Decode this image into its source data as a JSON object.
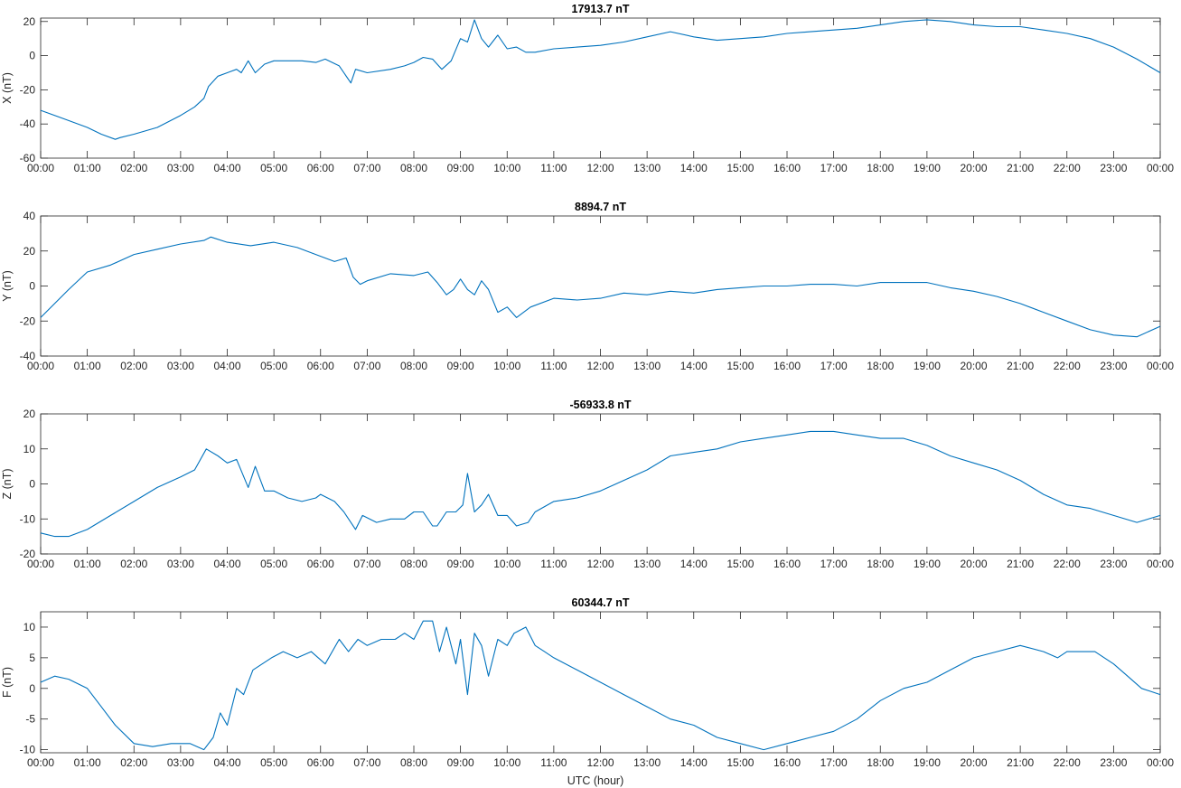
{
  "figure": {
    "xlabel": "UTC (hour)",
    "series_color": "#0072BD"
  },
  "chart_data": [
    {
      "type": "line",
      "title": "17913.7 nT",
      "ylabel": "X (nT)",
      "xlabel": "",
      "xlim": [
        0,
        24
      ],
      "ylim": [
        -60,
        22
      ],
      "yticks": [
        20,
        0,
        -20,
        -40,
        -60
      ],
      "xticklabels": [
        "00:00",
        "01:00",
        "02:00",
        "03:00",
        "04:00",
        "05:00",
        "06:00",
        "07:00",
        "08:00",
        "09:00",
        "10:00",
        "11:00",
        "12:00",
        "13:00",
        "14:00",
        "15:00",
        "16:00",
        "17:00",
        "18:00",
        "19:00",
        "20:00",
        "21:00",
        "22:00",
        "23:00",
        "00:00"
      ],
      "grid": false,
      "series": [
        {
          "x": [
            0,
            0.5,
            1,
            1.3,
            1.6,
            1.7,
            2,
            2.5,
            3,
            3.3,
            3.5,
            3.6,
            3.8,
            4,
            4.2,
            4.3,
            4.45,
            4.6,
            4.8,
            5,
            5.3,
            5.6,
            5.9,
            6.1,
            6.4,
            6.65,
            6.75,
            7,
            7.5,
            7.8,
            8,
            8.2,
            8.4,
            8.6,
            8.8,
            9,
            9.15,
            9.3,
            9.45,
            9.6,
            9.8,
            10,
            10.2,
            10.4,
            10.6,
            11,
            11.5,
            12,
            12.5,
            13,
            13.5,
            14,
            14.5,
            15,
            15.5,
            16,
            16.5,
            17,
            17.5,
            18,
            18.5,
            19,
            19.5,
            20,
            20.5,
            21,
            21.5,
            22,
            22.5,
            23,
            23.5,
            24
          ],
          "y": [
            -32,
            -37,
            -42,
            -46,
            -49,
            -48,
            -46,
            -42,
            -35,
            -30,
            -25,
            -18,
            -12,
            -10,
            -8,
            -10,
            -3,
            -10,
            -5,
            -3,
            -3,
            -3,
            -4,
            -2,
            -6,
            -16,
            -8,
            -10,
            -8,
            -6,
            -4,
            -1,
            -2,
            -8,
            -3,
            10,
            8,
            21,
            10,
            5,
            12,
            4,
            5,
            2,
            2,
            4,
            5,
            6,
            8,
            11,
            14,
            11,
            9,
            10,
            11,
            13,
            14,
            15,
            16,
            18,
            20,
            21,
            20,
            18,
            17,
            17,
            15,
            13,
            10,
            5,
            -2,
            -10
          ]
        }
      ]
    },
    {
      "type": "line",
      "title": "8894.7 nT",
      "ylabel": "Y (nT)",
      "xlabel": "",
      "xlim": [
        0,
        24
      ],
      "ylim": [
        -40,
        40
      ],
      "yticks": [
        40,
        20,
        0,
        -20,
        -40
      ],
      "xticklabels": [
        "00:00",
        "01:00",
        "02:00",
        "03:00",
        "04:00",
        "05:00",
        "06:00",
        "07:00",
        "08:00",
        "09:00",
        "10:00",
        "11:00",
        "12:00",
        "13:00",
        "14:00",
        "15:00",
        "16:00",
        "17:00",
        "18:00",
        "19:00",
        "20:00",
        "21:00",
        "22:00",
        "23:00",
        "00:00"
      ],
      "grid": false,
      "series": [
        {
          "x": [
            0,
            0.3,
            0.6,
            1,
            1.5,
            2,
            2.5,
            3,
            3.5,
            3.65,
            4,
            4.5,
            5,
            5.5,
            6,
            6.3,
            6.55,
            6.7,
            6.85,
            7,
            7.5,
            8,
            8.3,
            8.5,
            8.7,
            8.85,
            9,
            9.15,
            9.3,
            9.45,
            9.6,
            9.8,
            10,
            10.2,
            10.5,
            11,
            11.5,
            12,
            12.5,
            13,
            13.5,
            14,
            14.5,
            15,
            15.5,
            16,
            16.5,
            17,
            17.5,
            18,
            18.5,
            19,
            19.5,
            20,
            20.5,
            21,
            21.5,
            22,
            22.5,
            23,
            23.5,
            24
          ],
          "y": [
            -18,
            -10,
            -2,
            8,
            12,
            18,
            21,
            24,
            26,
            28,
            25,
            23,
            25,
            22,
            17,
            14,
            16,
            5,
            1,
            3,
            7,
            6,
            8,
            2,
            -5,
            -2,
            4,
            -2,
            -5,
            3,
            -2,
            -15,
            -12,
            -18,
            -12,
            -7,
            -8,
            -7,
            -4,
            -5,
            -3,
            -4,
            -2,
            -1,
            0,
            0,
            1,
            1,
            0,
            2,
            2,
            2,
            -1,
            -3,
            -6,
            -10,
            -15,
            -20,
            -25,
            -28,
            -29,
            -23
          ]
        }
      ]
    },
    {
      "type": "line",
      "title": "-56933.8 nT",
      "ylabel": "Z (nT)",
      "xlabel": "",
      "xlim": [
        0,
        24
      ],
      "ylim": [
        -20,
        20
      ],
      "yticks": [
        20,
        10,
        0,
        -10,
        -20
      ],
      "xticklabels": [
        "00:00",
        "01:00",
        "02:00",
        "03:00",
        "04:00",
        "05:00",
        "06:00",
        "07:00",
        "08:00",
        "09:00",
        "10:00",
        "11:00",
        "12:00",
        "13:00",
        "14:00",
        "15:00",
        "16:00",
        "17:00",
        "18:00",
        "19:00",
        "20:00",
        "21:00",
        "22:00",
        "23:00",
        "00:00"
      ],
      "grid": false,
      "series": [
        {
          "x": [
            0,
            0.3,
            0.6,
            1,
            1.5,
            2,
            2.5,
            3,
            3.3,
            3.55,
            3.8,
            4,
            4.2,
            4.45,
            4.6,
            4.8,
            5,
            5.3,
            5.6,
            5.9,
            6,
            6.3,
            6.5,
            6.75,
            6.9,
            7.2,
            7.5,
            7.8,
            8,
            8.2,
            8.4,
            8.5,
            8.7,
            8.9,
            9.05,
            9.15,
            9.3,
            9.45,
            9.6,
            9.8,
            10,
            10.2,
            10.45,
            10.6,
            11,
            11.5,
            12,
            12.5,
            13,
            13.5,
            14,
            14.5,
            15,
            15.5,
            16,
            16.5,
            17,
            17.5,
            18,
            18.5,
            19,
            19.5,
            20,
            20.5,
            21,
            21.5,
            22,
            22.5,
            23,
            23.5,
            24
          ],
          "y": [
            -14,
            -15,
            -15,
            -13,
            -9,
            -5,
            -1,
            2,
            4,
            10,
            8,
            6,
            7,
            -1,
            5,
            -2,
            -2,
            -4,
            -5,
            -4,
            -3,
            -5,
            -8,
            -13,
            -9,
            -11,
            -10,
            -10,
            -8,
            -8,
            -12,
            -12,
            -8,
            -8,
            -6,
            3,
            -8,
            -6,
            -3,
            -9,
            -9,
            -12,
            -11,
            -8,
            -5,
            -4,
            -2,
            1,
            4,
            8,
            9,
            10,
            12,
            13,
            14,
            15,
            15,
            14,
            13,
            13,
            11,
            8,
            6,
            4,
            1,
            -3,
            -6,
            -7,
            -9,
            -11,
            -9
          ]
        }
      ]
    },
    {
      "type": "line",
      "title": "60344.7 nT",
      "ylabel": "F (nT)",
      "xlabel": "UTC (hour)",
      "xlim": [
        0,
        24
      ],
      "ylim": [
        -10.5,
        12.5
      ],
      "yticks": [
        10,
        5,
        0,
        -5,
        -10
      ],
      "xticklabels": [
        "00:00",
        "01:00",
        "02:00",
        "03:00",
        "04:00",
        "05:00",
        "06:00",
        "07:00",
        "08:00",
        "09:00",
        "10:00",
        "11:00",
        "12:00",
        "13:00",
        "14:00",
        "15:00",
        "16:00",
        "17:00",
        "18:00",
        "19:00",
        "20:00",
        "21:00",
        "22:00",
        "23:00",
        "00:00"
      ],
      "grid": false,
      "series": [
        {
          "x": [
            0,
            0.3,
            0.6,
            1,
            1.3,
            1.6,
            2,
            2.4,
            2.8,
            3.2,
            3.5,
            3.7,
            3.85,
            4,
            4.2,
            4.35,
            4.55,
            4.75,
            4.95,
            5.2,
            5.5,
            5.8,
            6.1,
            6.4,
            6.6,
            6.8,
            7,
            7.3,
            7.6,
            7.8,
            8,
            8.2,
            8.4,
            8.55,
            8.7,
            8.9,
            9.0,
            9.15,
            9.3,
            9.45,
            9.6,
            9.8,
            10,
            10.15,
            10.4,
            10.6,
            10.8,
            11,
            11.5,
            12,
            12.5,
            13,
            13.5,
            14,
            14.5,
            15,
            15.5,
            16,
            16.5,
            17,
            17.5,
            18,
            18.5,
            19,
            19.5,
            20,
            20.5,
            21,
            21.5,
            21.8,
            22,
            22.3,
            22.6,
            23,
            23.3,
            23.6,
            24
          ],
          "y": [
            1,
            2,
            1.5,
            0,
            -3,
            -6,
            -9,
            -9.5,
            -9,
            -9,
            -10,
            -8,
            -4,
            -6,
            0,
            -1,
            3,
            4,
            5,
            6,
            5,
            6,
            4,
            8,
            6,
            8,
            7,
            8,
            8,
            9,
            8,
            11,
            11,
            6,
            10,
            4,
            8,
            -1,
            9,
            7,
            2,
            8,
            7,
            9,
            10,
            7,
            6,
            5,
            3,
            1,
            -1,
            -3,
            -5,
            -6,
            -8,
            -9,
            -10,
            -9,
            -8,
            -7,
            -5,
            -2,
            0,
            1,
            3,
            5,
            6,
            7,
            6,
            5,
            6,
            6,
            6,
            4,
            2,
            0,
            -1
          ]
        }
      ]
    }
  ]
}
